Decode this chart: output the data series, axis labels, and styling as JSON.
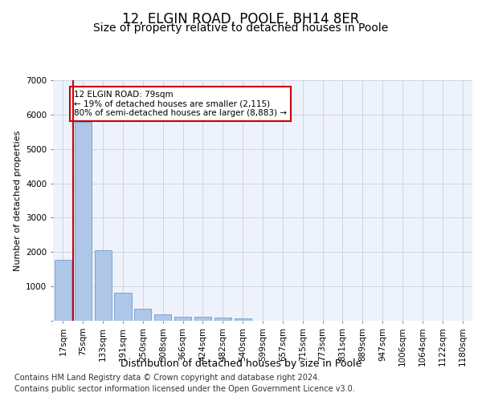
{
  "title1": "12, ELGIN ROAD, POOLE, BH14 8ER",
  "title2": "Size of property relative to detached houses in Poole",
  "xlabel": "Distribution of detached houses by size in Poole",
  "ylabel": "Number of detached properties",
  "categories": [
    "17sqm",
    "75sqm",
    "133sqm",
    "191sqm",
    "250sqm",
    "308sqm",
    "366sqm",
    "424sqm",
    "482sqm",
    "540sqm",
    "599sqm",
    "657sqm",
    "715sqm",
    "773sqm",
    "831sqm",
    "889sqm",
    "947sqm",
    "1006sqm",
    "1064sqm",
    "1122sqm",
    "1180sqm"
  ],
  "values": [
    1780,
    5780,
    2060,
    820,
    340,
    185,
    115,
    110,
    95,
    70,
    0,
    0,
    0,
    0,
    0,
    0,
    0,
    0,
    0,
    0,
    0
  ],
  "bar_color": "#aec6e8",
  "bar_edge_color": "#5b8fc9",
  "vline_x": 0.5,
  "vline_color": "#cc0000",
  "annotation_text": "12 ELGIN ROAD: 79sqm\n← 19% of detached houses are smaller (2,115)\n80% of semi-detached houses are larger (8,883) →",
  "annotation_box_color": "#ffffff",
  "annotation_box_edge_color": "#cc0000",
  "ylim": [
    0,
    7000
  ],
  "yticks": [
    0,
    1000,
    2000,
    3000,
    4000,
    5000,
    6000,
    7000
  ],
  "footer1": "Contains HM Land Registry data © Crown copyright and database right 2024.",
  "footer2": "Contains public sector information licensed under the Open Government Licence v3.0.",
  "background_color": "#eef2fb",
  "grid_color": "#c8d0e0",
  "title1_fontsize": 12,
  "title2_fontsize": 10,
  "xlabel_fontsize": 9,
  "ylabel_fontsize": 8,
  "tick_fontsize": 7.5,
  "footer_fontsize": 7
}
